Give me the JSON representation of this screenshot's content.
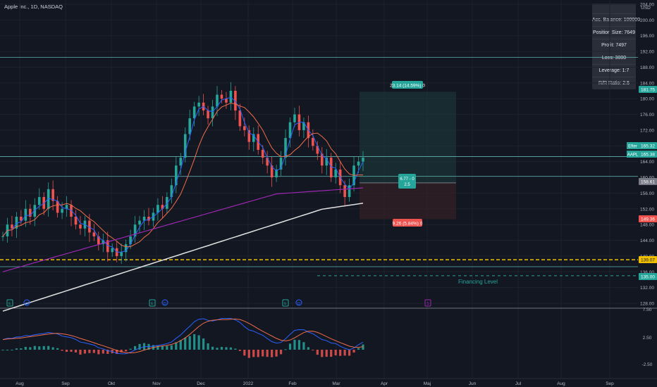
{
  "header": {
    "symbol_line": "Apple Inc., 1D, NASDAQ"
  },
  "currency": "USD",
  "panel": {
    "rows": [
      "Acc. Balance: 100000",
      "Position Size: 7649",
      "Profit: 7497",
      "Loss: 3000",
      "Leverage: 1:7",
      "R/R Ratio: 2.5"
    ]
  },
  "chart_data": {
    "type": "candlestick",
    "symbol": "Apple Inc.",
    "interval": "1D",
    "exchange": "NASDAQ",
    "price_axis": {
      "ticks": [
        128,
        132,
        136,
        140,
        144,
        148,
        152,
        156,
        160,
        164,
        168,
        172,
        176,
        180,
        184,
        188,
        192,
        196,
        200,
        204
      ],
      "range": [
        126,
        206
      ]
    },
    "time_axis_labels": [
      "Aug",
      "Sep",
      "Okt",
      "Nov",
      "Dec",
      "2022",
      "Feb",
      "Mar",
      "Apr",
      "Maj",
      "Jun",
      "Jul",
      "Aug",
      "Sep"
    ],
    "price_labels": [
      {
        "text": "181.75",
        "color": "#26a69a"
      },
      {
        "text": "165.32",
        "color": "#26a69a"
      },
      {
        "text": "165.38",
        "color": "#26a69a"
      },
      {
        "text": "158.61",
        "color": "#787b86"
      },
      {
        "text": "149.36",
        "color": "#ef5350"
      },
      {
        "text": "139.07",
        "color": "#f0c000"
      },
      {
        "text": "135.00",
        "color": "#26a69a"
      }
    ],
    "series_tags": [
      "Efter",
      "AAPL"
    ],
    "horizontal_levels": [
      {
        "price": 190.5,
        "color": "#5fb3b3"
      },
      {
        "price": 165.3,
        "color": "#5fb3b3"
      },
      {
        "price": 160.3,
        "color": "#5fb3b3"
      },
      {
        "price": 139.07,
        "color": "#f0c000"
      },
      {
        "price": 137.3,
        "color": "#5fb3b3"
      },
      {
        "price": 135.0,
        "color": "#26a69a",
        "label": "Financing Level"
      }
    ],
    "position": {
      "entry": 158.61,
      "target": 181.75,
      "stop": 149.36,
      "target_label": "23.14 (14.59%) 0",
      "stop_label": "9.26 (5.84%) 0",
      "mid_label": [
        "6.77 - 0",
        "2.5"
      ]
    },
    "candles": {
      "x_labels": [
        "Aug",
        "Sep",
        "Okt",
        "Nov",
        "Dec",
        "2022",
        "Feb",
        "Mar"
      ],
      "close_path": [
        145,
        148,
        147,
        150,
        149,
        152,
        150,
        153,
        155,
        152,
        157,
        154,
        151,
        152,
        153,
        150,
        148,
        147,
        149,
        146,
        145,
        143,
        144,
        141,
        142,
        140,
        141,
        143,
        145,
        148,
        149,
        150,
        149,
        151,
        153,
        152,
        155,
        158,
        163,
        165,
        171,
        175,
        178,
        179,
        177,
        175,
        178,
        181,
        180,
        179,
        182,
        177,
        173,
        172,
        169,
        171,
        167,
        165,
        163,
        160,
        162,
        165,
        170,
        174,
        176,
        172,
        174,
        170,
        168,
        166,
        163,
        165,
        160,
        162,
        158,
        155,
        158,
        163,
        164,
        165
      ]
    },
    "indicator": {
      "name": "MACD",
      "ticks": [
        7.5,
        2.5,
        -2.5
      ]
    },
    "event_markers": [
      "E",
      "D",
      "E",
      "D",
      "E",
      "D",
      "S"
    ]
  }
}
